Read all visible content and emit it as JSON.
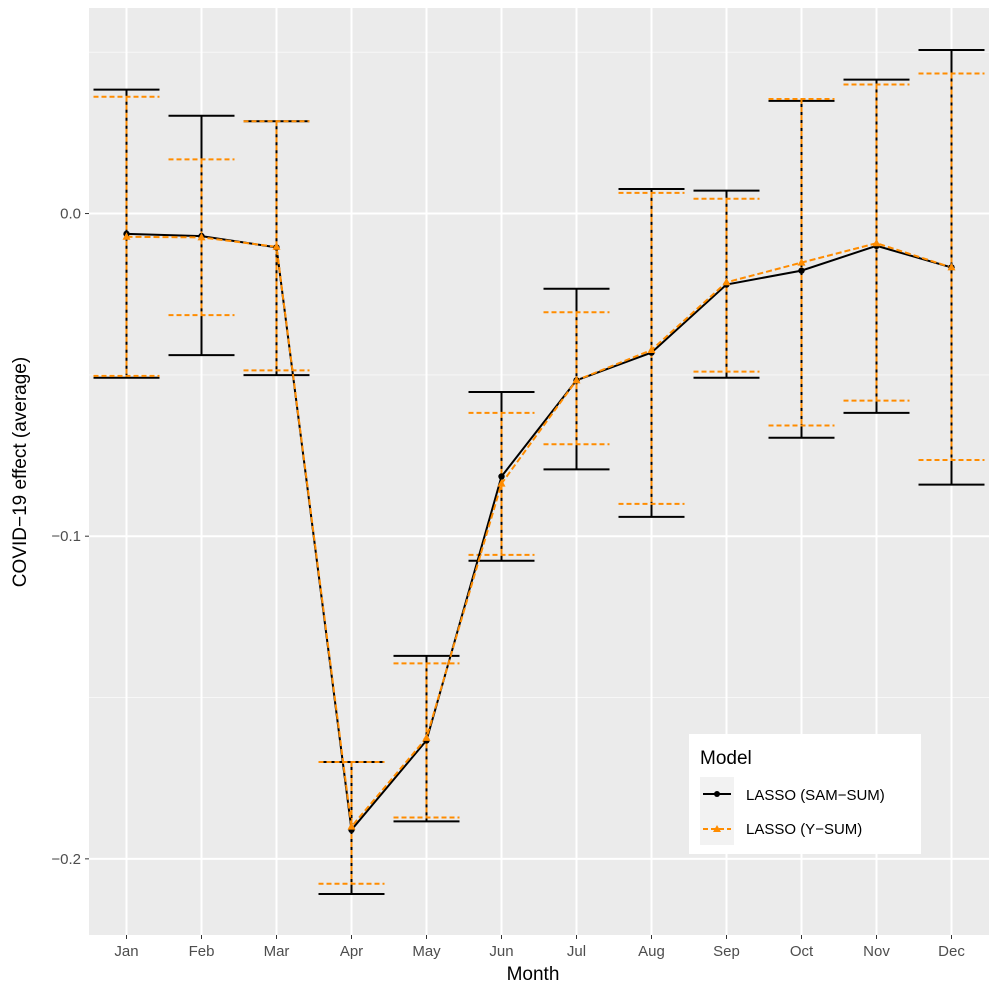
{
  "chart_data": {
    "type": "line",
    "xlabel": "Month",
    "ylabel": "COVID−19 effect (average)",
    "categories": [
      "Jan",
      "Feb",
      "Mar",
      "Apr",
      "May",
      "Jun",
      "Jul",
      "Aug",
      "Sep",
      "Oct",
      "Nov",
      "Dec"
    ],
    "ylim": [
      -0.2236,
      0.0637
    ],
    "y_ticks": [
      0.0,
      -0.1,
      -0.2
    ],
    "y_tick_labels": [
      "0.0",
      "−0.1",
      "−0.2"
    ],
    "grid": true,
    "legend": {
      "title": "Model",
      "placement": "bottom-right"
    },
    "series": [
      {
        "name": "LASSO (SAM−SUM)",
        "color": "#000000",
        "line_style": "solid",
        "marker": "circle",
        "values": [
          -0.0063,
          -0.007,
          -0.0105,
          -0.191,
          -0.1633,
          -0.0815,
          -0.0517,
          -0.0431,
          -0.022,
          -0.0177,
          -0.01,
          -0.0167
        ],
        "lower": [
          -0.0509,
          -0.0439,
          -0.0501,
          -0.2109,
          -0.1884,
          -0.1076,
          -0.0793,
          -0.094,
          -0.0509,
          -0.0695,
          -0.0618,
          -0.084
        ],
        "upper": [
          0.0384,
          0.0303,
          0.0286,
          -0.17,
          -0.1371,
          -0.0553,
          -0.0233,
          0.0076,
          0.0071,
          0.0349,
          0.0415,
          0.0507
        ]
      },
      {
        "name": "LASSO (Y−SUM)",
        "color": "#FF8C00",
        "line_style": "dashed",
        "marker": "triangle",
        "values": [
          -0.0072,
          -0.0074,
          -0.0103,
          -0.19,
          -0.1625,
          -0.0837,
          -0.0517,
          -0.0423,
          -0.0213,
          -0.0152,
          -0.0092,
          -0.0167
        ],
        "lower": [
          -0.0503,
          -0.0315,
          -0.0486,
          -0.2077,
          -0.1872,
          -0.1058,
          -0.0715,
          -0.09,
          -0.049,
          -0.0657,
          -0.058,
          -0.0764
        ],
        "upper": [
          0.0362,
          0.0168,
          0.0286,
          -0.17,
          -0.1394,
          -0.0618,
          -0.0306,
          0.0064,
          0.0046,
          0.0355,
          0.04,
          0.0434
        ]
      }
    ]
  }
}
